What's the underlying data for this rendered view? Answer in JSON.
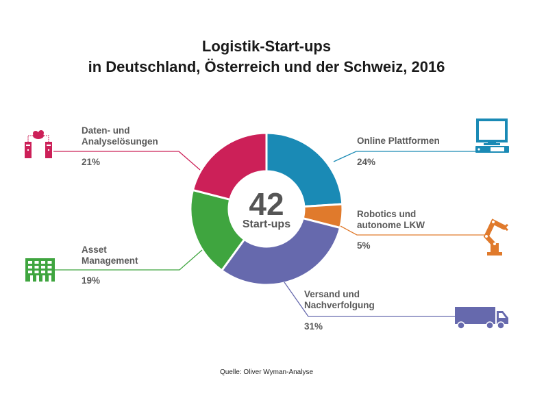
{
  "chart_data": {
    "type": "pie",
    "title": "Logistik-Start-ups",
    "subtitle": "in Deutschland, Österreich und der Schweiz, 2016",
    "center_value": "42",
    "center_label": "Start-ups",
    "donut": true,
    "slices": [
      {
        "label": "Online Plattformen",
        "value": 24,
        "value_label": "24%",
        "color": "#1a8ab5",
        "icon": "computer-icon"
      },
      {
        "label": "Robotics und autonome LKW",
        "value": 5,
        "value_label": "5%",
        "color": "#e07a2c",
        "icon": "robot-arm-icon"
      },
      {
        "label": "Versand und Nachverfolgung",
        "value": 31,
        "value_label": "31%",
        "color": "#6669ad",
        "icon": "truck-icon"
      },
      {
        "label": "Asset Management",
        "value": 19,
        "value_label": "19%",
        "color": "#3fa53f",
        "icon": "building-icon"
      },
      {
        "label": "Daten- und Analyselösungen",
        "value": 21,
        "value_label": "21%",
        "color": "#cc2058",
        "icon": "cloud-servers-icon"
      }
    ],
    "source": "Quelle: Oliver Wyman-Analyse"
  }
}
